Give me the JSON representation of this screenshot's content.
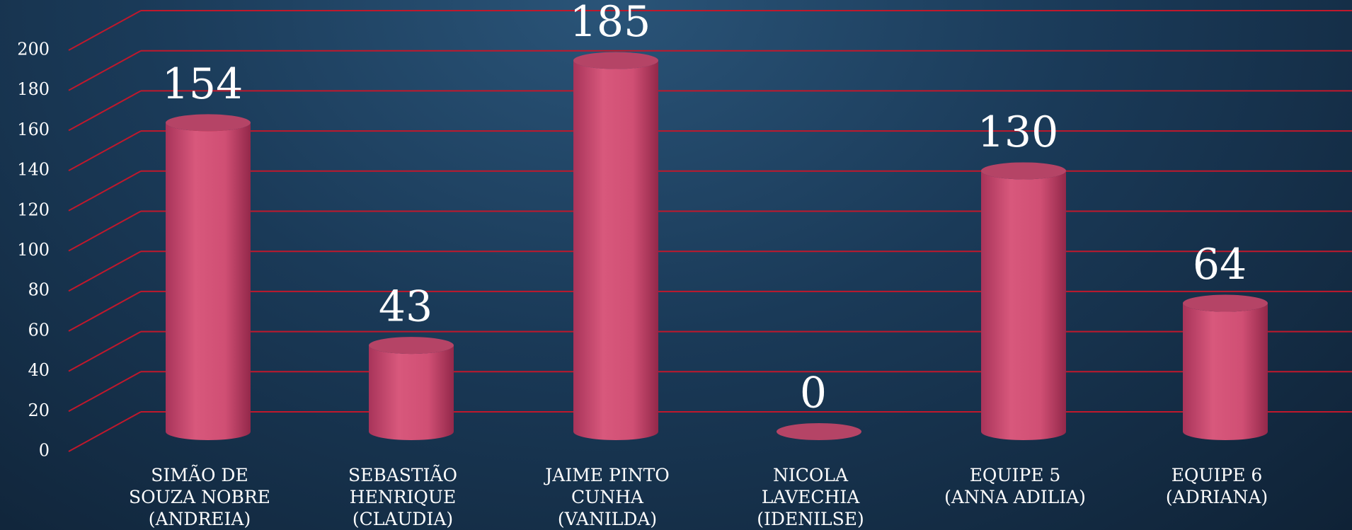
{
  "chart_data": {
    "type": "bar3d",
    "categories": [
      "SIMÃO DE\nSOUZA NOBRE\n(ANDREIA)",
      "SEBASTIÃO\nHENRIQUE\n(CLAUDIA)",
      "JAIME PINTO\nCUNHA\n(VANILDA)",
      "NICOLA\nLAVECHIA\n(IDENILSE)",
      "EQUIPE 5\n(ANNA ADILIA)",
      "EQUIPE 6\n(ADRIANA)"
    ],
    "values": [
      154,
      43,
      185,
      0,
      130,
      64
    ],
    "color": "#d4557a",
    "ylim": [
      0,
      200
    ],
    "yticks": [
      0,
      20,
      40,
      60,
      80,
      100,
      120,
      140,
      160,
      180,
      200
    ],
    "grid": true
  }
}
